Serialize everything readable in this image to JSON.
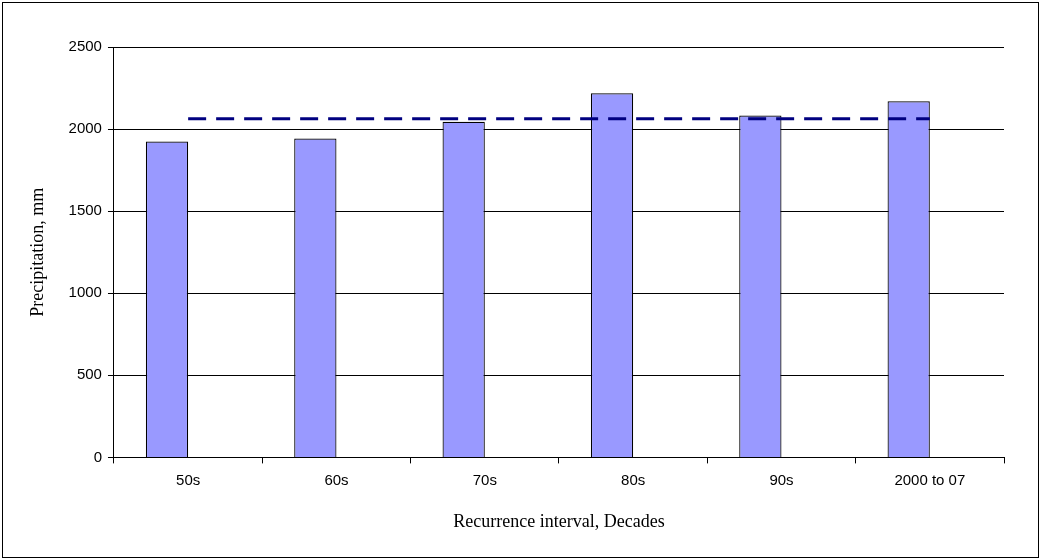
{
  "chart_data": {
    "type": "bar",
    "xlabel": "Recurrence interval, Decades",
    "ylabel": "Precipitation, mm",
    "categories": [
      "50s",
      "60s",
      "70s",
      "80s",
      "90s",
      "2000 to 07"
    ],
    "series": [
      {
        "color": "#9999ff",
        "values": [
          1924,
          1942,
          2045,
          2218,
          2082,
          2169
        ]
      },
      {
        "type": "line",
        "color": "#000080",
        "line_style": "dashed",
        "marker": "none",
        "values": [
          2063,
          2063,
          2063,
          2063,
          2063,
          2063
        ]
      }
    ],
    "ylim": [
      0,
      2500
    ],
    "yticks": [
      0,
      500,
      1000,
      1500,
      2000,
      2500
    ],
    "grid": "y",
    "legend": false
  }
}
